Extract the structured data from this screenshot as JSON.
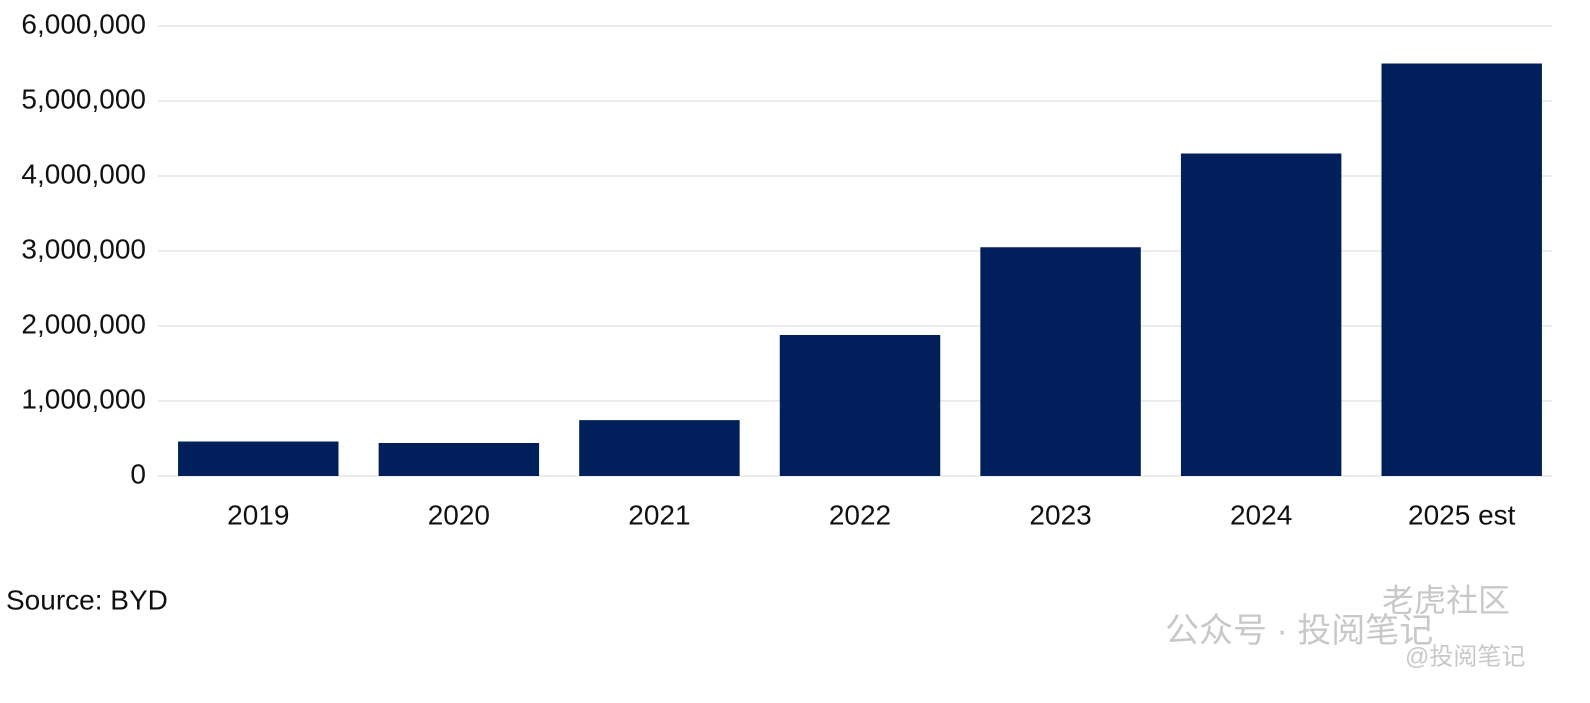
{
  "chart_data": {
    "type": "bar",
    "categories": [
      "2019",
      "2020",
      "2021",
      "2022",
      "2023",
      "2024",
      "2025 est"
    ],
    "values": [
      460000,
      440000,
      745000,
      1880000,
      3050000,
      4300000,
      5500000
    ],
    "color": "#001f5b",
    "ylim": [
      0,
      6000000
    ],
    "yticks": [
      0,
      {
        "value": 1000000,
        "label": "1,000,000"
      },
      {
        "value": 2000000,
        "label": "2,000,000"
      },
      {
        "value": 3000000,
        "label": "3,000,000"
      },
      {
        "value": 4000000,
        "label": "4,000,000"
      },
      {
        "value": 5000000,
        "label": "5,000,000"
      },
      {
        "value": 6000000,
        "label": "6,000,000"
      }
    ],
    "grid": true,
    "source": "Source: BYD",
    "watermarks": [
      "公众号 · 投阅笔记",
      "老虎社区",
      "@投阅笔记"
    ]
  }
}
